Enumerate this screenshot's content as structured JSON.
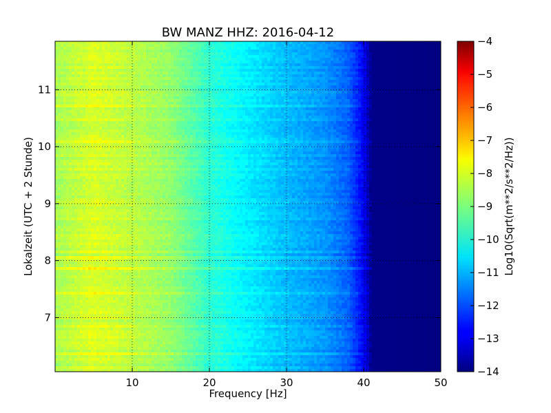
{
  "chart_data": {
    "type": "heatmap",
    "title": "BW MANZ HHZ: 2016-04-12",
    "xlabel": "Frequency [Hz]",
    "ylabel": "Lokalzeit (UTC + 2 Stunde)",
    "xlim": [
      0,
      50
    ],
    "ylim": [
      11.85,
      6.05
    ],
    "x_ticks": [
      10,
      20,
      30,
      40,
      50
    ],
    "y_ticks": [
      7,
      8,
      9,
      10,
      11
    ],
    "grid": true,
    "colorbar": {
      "label": "Log10(Sqrt(m**2/s**2/Hz))",
      "range": [
        -14,
        -4
      ],
      "ticks": [
        -4,
        -5,
        -6,
        -7,
        -8,
        -9,
        -10,
        -11,
        -12,
        -13,
        -14
      ],
      "colormap": "jet"
    },
    "spectrum_profile": [
      {
        "frequency": 0,
        "value": -8.6
      },
      {
        "frequency": 5,
        "value": -8.1
      },
      {
        "frequency": 10,
        "value": -8.4
      },
      {
        "frequency": 15,
        "value": -8.8
      },
      {
        "frequency": 20,
        "value": -9.8
      },
      {
        "frequency": 25,
        "value": -10.4
      },
      {
        "frequency": 30,
        "value": -10.9
      },
      {
        "frequency": 35,
        "value": -11.3
      },
      {
        "frequency": 38,
        "value": -11.8
      },
      {
        "frequency": 40,
        "value": -12.8
      },
      {
        "frequency": 41,
        "value": -13.9
      },
      {
        "frequency": 50,
        "value": -14.0
      }
    ]
  }
}
